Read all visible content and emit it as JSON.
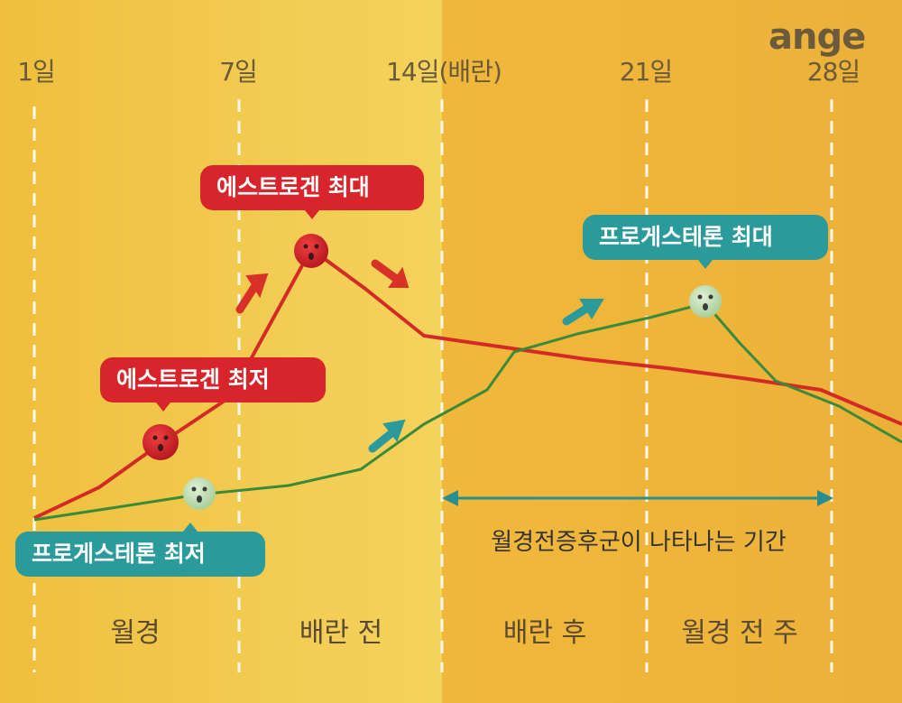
{
  "logo": "ange",
  "days": [
    "1일",
    "7일",
    "14일(배란)",
    "21일",
    "28일"
  ],
  "bubbles": {
    "estrogen_max": "에스트로겐 최대",
    "estrogen_min": "에스트로겐 최저",
    "progesterone_max": "프로게스테론 최대",
    "progesterone_min": "프로게스테론 최저"
  },
  "period_label": "월경전증후군이 나타나는 기간",
  "phases": [
    "월경",
    "배란 전",
    "배란 후",
    "월경 전 주"
  ],
  "colors": {
    "estrogen_line": "#d42a25",
    "progesterone_line": "#3a8a3a",
    "red_bubble": "#d8252b",
    "teal_bubble": "#2a9a9a",
    "red_arrow": "#d83228",
    "teal_arrow": "#2a9a9a",
    "period_arrow": "#2a8e8e"
  },
  "icons": {
    "red_marker": "virus-face-icon",
    "green_marker": "virus-face-icon",
    "arrows": "arrow-icon"
  }
}
